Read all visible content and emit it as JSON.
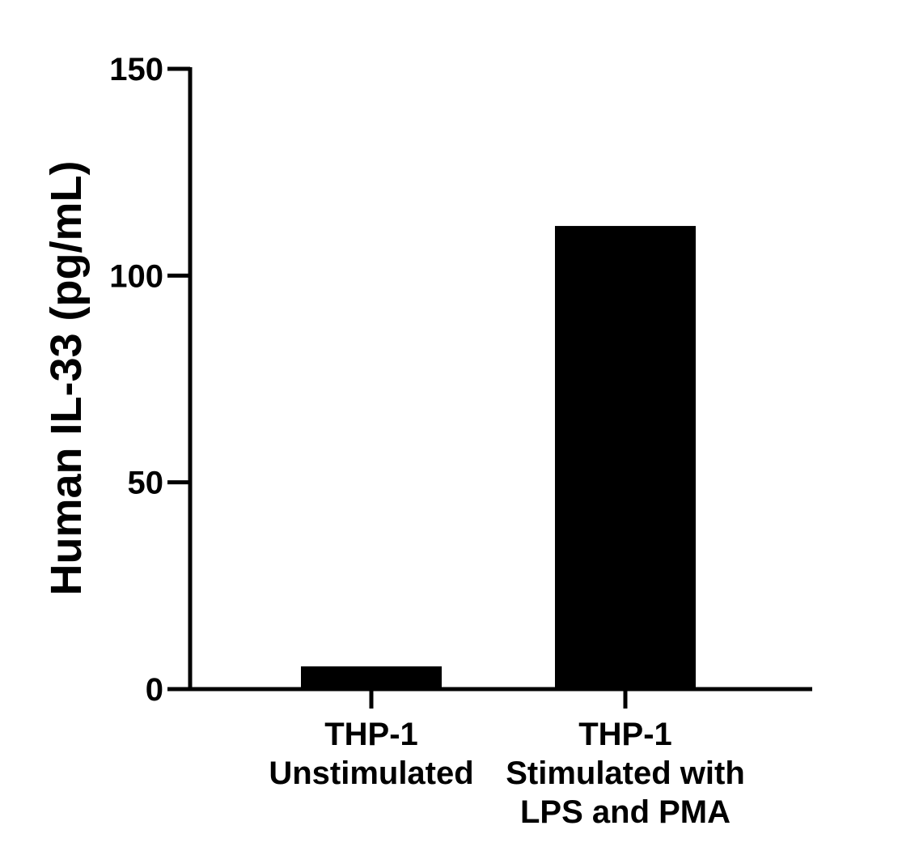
{
  "chart_data": {
    "type": "bar",
    "title": "",
    "xlabel": "",
    "ylabel": "Human IL-33 (pg/mL)",
    "ylim": [
      0,
      150
    ],
    "yticks": [
      0,
      50,
      100,
      150
    ],
    "ytick_labels": [
      "0",
      "50",
      "100",
      "150"
    ],
    "categories": [
      [
        "THP-1",
        "Unstimulated"
      ],
      [
        "THP-1",
        "Stimulated with",
        "LPS and PMA"
      ]
    ],
    "values": [
      5.5,
      112
    ],
    "bar_color": "#000000",
    "grid": false,
    "legend": "none"
  }
}
